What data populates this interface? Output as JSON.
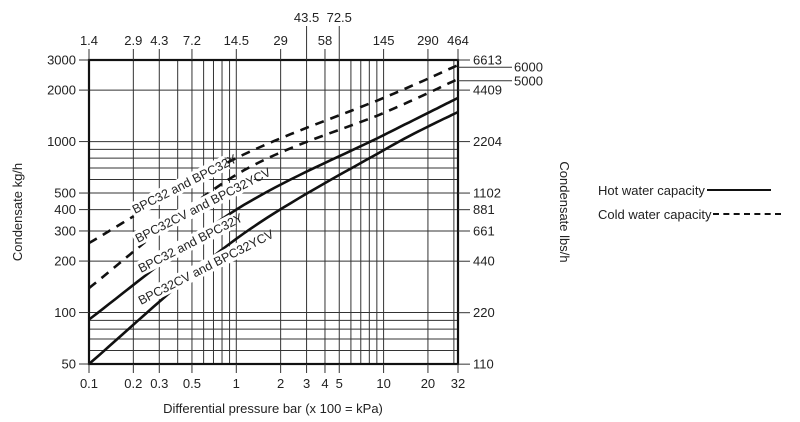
{
  "chart_data": {
    "type": "line",
    "title": "",
    "xlabel": "Differential pressure bar (x 100 = kPa)",
    "ylabel": "Condensate kg/h",
    "ylabel_right": "Condensate lbs/h",
    "x_scale": "log",
    "y_scale": "log",
    "xlim": [
      0.1,
      32
    ],
    "ylim": [
      50,
      3000
    ],
    "x_ticks": [
      "0.1",
      "0.2",
      "0.3",
      "0.5",
      "1",
      "2",
      "3",
      "4",
      "5",
      "10",
      "20",
      "32"
    ],
    "x_tick_values": [
      0.1,
      0.2,
      0.3,
      0.5,
      1,
      2,
      3,
      4,
      5,
      10,
      20,
      32
    ],
    "x_top_ticks_psi": [
      "1.4",
      "2.9",
      "4.3",
      "7.2",
      "14.5",
      "29",
      "43.5",
      "58",
      "72.5",
      "145",
      "290",
      "464"
    ],
    "y_ticks": [
      "50",
      "100",
      "200",
      "300",
      "400",
      "500",
      "1000",
      "2000",
      "3000"
    ],
    "y_tick_values": [
      50,
      100,
      200,
      300,
      400,
      500,
      1000,
      2000,
      3000
    ],
    "y_right_ticks_lbs": [
      "110",
      "220",
      "440",
      "661",
      "881",
      "1102",
      "2204",
      "4409",
      "5000",
      "6000",
      "6613"
    ],
    "grid": true,
    "legend_position": "right",
    "legend": [
      {
        "label": "Hot water capacity",
        "style": "solid"
      },
      {
        "label": "Cold water capacity",
        "style": "dashed"
      }
    ],
    "x": [
      0.1,
      1,
      10,
      32
    ],
    "series": [
      {
        "name": "BPC32 and BPC32Y (cold)",
        "style": "dashed",
        "values": [
          255,
          800,
          1800,
          2800
        ]
      },
      {
        "name": "BPC32CV and BPC32YCV (cold)",
        "style": "dashed",
        "values": [
          139,
          640,
          1470,
          2320
        ]
      },
      {
        "name": "BPC32 and BPC32Y (hot)",
        "style": "solid",
        "values": [
          91,
          400,
          1090,
          1800
        ]
      },
      {
        "name": "BPC32CV and BPC32YCV (hot)",
        "style": "solid",
        "values": [
          50,
          270,
          890,
          1490
        ]
      }
    ],
    "annotations": [
      "BPC32 and BPC32Y",
      "BPC32CV and BPC32YCV",
      "BPC32 and BPC32Y",
      "BPC32CV and BPC32YCV"
    ]
  },
  "legend": {
    "hot": "Hot water capacity",
    "cold": "Cold water capacity"
  }
}
